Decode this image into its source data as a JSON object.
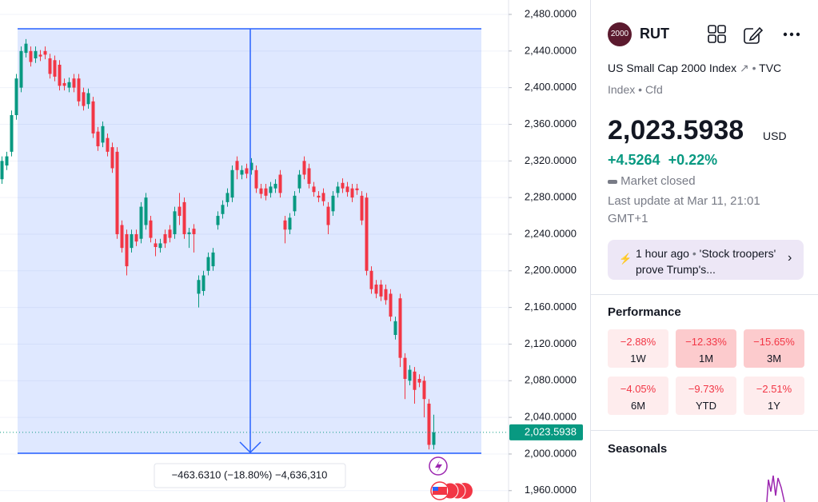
{
  "chart_data": {
    "type": "candlestick",
    "ylim": [
      1947.6,
      2495.7
    ],
    "yticks": [
      {
        "value": 2480,
        "label": "2,480.0000"
      },
      {
        "value": 2440,
        "label": "2,440.0000"
      },
      {
        "value": 2400,
        "label": "2,400.0000"
      },
      {
        "value": 2360,
        "label": "2,360.0000"
      },
      {
        "value": 2320,
        "label": "2,320.0000"
      },
      {
        "value": 2280,
        "label": "2,280.0000"
      },
      {
        "value": 2240,
        "label": "2,240.0000"
      },
      {
        "value": 2200,
        "label": "2,200.0000"
      },
      {
        "value": 2160,
        "label": "2,160.0000"
      },
      {
        "value": 2120,
        "label": "2,120.0000"
      },
      {
        "value": 2080,
        "label": "2,080.0000"
      },
      {
        "value": 2040,
        "label": "2,040.0000"
      },
      {
        "value": 2000,
        "label": "2,000.0000"
      },
      {
        "value": 1960,
        "label": "1,960.0000"
      }
    ],
    "grid": true,
    "up_color": "#089981",
    "down_color": "#f23645",
    "open": [
      2300,
      2315,
      2330,
      2370,
      2400,
      2438,
      2440,
      2432,
      2436,
      2440,
      2432,
      2430,
      2425,
      2405,
      2400,
      2410,
      2410,
      2395,
      2382,
      2385,
      2352,
      2340,
      2345,
      2335,
      2330,
      2250,
      2240,
      2225,
      2240,
      2235,
      2250,
      2255,
      2230,
      2225,
      2240,
      2245,
      2240,
      2270,
      2275,
      2240,
      2246,
      2175,
      2178,
      2200,
      2205,
      2250,
      2262,
      2275,
      2280,
      2320,
      2305,
      2312,
      2310,
      2310,
      2290,
      2290,
      2285,
      2290,
      2305,
      2255,
      2245,
      2265,
      2290,
      2320,
      2312,
      2292,
      2282,
      2285,
      2270,
      2265,
      2285,
      2296,
      2292,
      2290,
      2290,
      2282,
      2280,
      2200,
      2185,
      2185,
      2180,
      2175,
      2130,
      2170,
      2105,
      2080,
      2090,
      2082,
      2080,
      2055,
      2010
    ],
    "high": [
      2325,
      2330,
      2375,
      2415,
      2445,
      2453,
      2445,
      2445,
      2441,
      2445,
      2437,
      2435,
      2430,
      2410,
      2411,
      2415,
      2415,
      2400,
      2399,
      2390,
      2357,
      2363,
      2350,
      2340,
      2335,
      2255,
      2245,
      2245,
      2245,
      2275,
      2285,
      2260,
      2235,
      2235,
      2245,
      2250,
      2270,
      2285,
      2280,
      2247,
      2251,
      2195,
      2200,
      2220,
      2225,
      2265,
      2277,
      2290,
      2315,
      2325,
      2315,
      2317,
      2323,
      2315,
      2295,
      2295,
      2297,
      2300,
      2310,
      2260,
      2263,
      2287,
      2310,
      2325,
      2317,
      2297,
      2287,
      2290,
      2275,
      2287,
      2297,
      2301,
      2297,
      2295,
      2295,
      2287,
      2285,
      2205,
      2190,
      2190,
      2185,
      2180,
      2150,
      2175,
      2110,
      2097,
      2095,
      2087,
      2085,
      2060,
      2043
    ],
    "low": [
      2295,
      2310,
      2325,
      2365,
      2395,
      2433,
      2423,
      2427,
      2429,
      2431,
      2410,
      2407,
      2397,
      2397,
      2395,
      2395,
      2380,
      2375,
      2377,
      2345,
      2331,
      2335,
      2325,
      2307,
      2235,
      2220,
      2195,
      2220,
      2227,
      2230,
      2245,
      2231,
      2216,
      2220,
      2225,
      2231,
      2235,
      2250,
      2235,
      2225,
      2220,
      2160,
      2173,
      2195,
      2200,
      2245,
      2257,
      2270,
      2275,
      2300,
      2300,
      2301,
      2305,
      2285,
      2279,
      2277,
      2280,
      2285,
      2280,
      2230,
      2240,
      2260,
      2285,
      2300,
      2290,
      2281,
      2275,
      2271,
      2240,
      2260,
      2280,
      2285,
      2281,
      2275,
      2283,
      2250,
      2195,
      2175,
      2170,
      2167,
      2163,
      2145,
      2125,
      2095,
      2060,
      2075,
      2055,
      2073,
      2040,
      2005,
      2005
    ],
    "close": [
      2320,
      2325,
      2370,
      2410,
      2440,
      2448,
      2428,
      2440,
      2434,
      2436,
      2415,
      2412,
      2402,
      2402,
      2406,
      2400,
      2385,
      2380,
      2394,
      2350,
      2336,
      2358,
      2330,
      2312,
      2240,
      2225,
      2205,
      2240,
      2232,
      2270,
      2280,
      2236,
      2226,
      2230,
      2230,
      2236,
      2265,
      2260,
      2240,
      2242,
      2240,
      2190,
      2195,
      2215,
      2220,
      2260,
      2272,
      2285,
      2310,
      2310,
      2310,
      2306,
      2318,
      2290,
      2284,
      2282,
      2292,
      2295,
      2285,
      2245,
      2258,
      2282,
      2305,
      2305,
      2295,
      2286,
      2280,
      2276,
      2250,
      2282,
      2292,
      2290,
      2286,
      2280,
      2288,
      2255,
      2200,
      2180,
      2175,
      2172,
      2168,
      2150,
      2145,
      2105,
      2082,
      2092,
      2070,
      2078,
      2060,
      2010,
      2023.5938
    ],
    "last_label": "2,023.5938",
    "measure_label": "−463.6310 (−18.80%) −4,636,310"
  },
  "sidebar": {
    "logo": "2000",
    "symbol": "RUT",
    "name": "US Small Cap 2000 Index",
    "exchange": "TVC",
    "kind": "Index",
    "sub": "Cfd",
    "price": "2,023.5938",
    "currency": "USD",
    "change": "+4.5264",
    "change_pct": "+0.22%",
    "status": "Market closed",
    "update": "Last update at Mar 11, 21:01 GMT+1",
    "news_time": "1 hour ago",
    "news_text": "'Stock troopers' prove Trump's...",
    "performance_title": "Performance",
    "performance": [
      {
        "value": "−2.88%",
        "period": "1W"
      },
      {
        "value": "−12.33%",
        "period": "1M"
      },
      {
        "value": "−15.65%",
        "period": "3M"
      },
      {
        "value": "−4.05%",
        "period": "6M"
      },
      {
        "value": "−9.73%",
        "period": "YTD"
      },
      {
        "value": "−2.51%",
        "period": "1Y"
      }
    ],
    "seasonals_title": "Seasonals"
  }
}
